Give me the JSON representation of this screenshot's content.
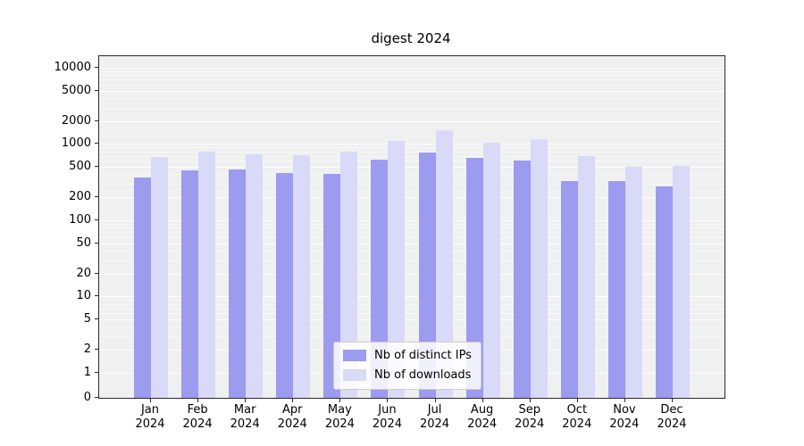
{
  "chart_data": {
    "type": "bar",
    "title": "digest 2024",
    "categories": [
      "Jan",
      "Feb",
      "Mar",
      "Apr",
      "May",
      "Jun",
      "Jul",
      "Aug",
      "Sep",
      "Oct",
      "Nov",
      "Dec"
    ],
    "year_label": "2024",
    "yscale": "log",
    "yticks": [
      0,
      1,
      2,
      5,
      10,
      20,
      50,
      100,
      200,
      500,
      1000,
      2000,
      5000,
      10000
    ],
    "ylim": [
      0,
      14000
    ],
    "grid": true,
    "legend_position": "lower center",
    "plot_background": "#f0f0f0",
    "series": [
      {
        "name": "Nb of distinct IPs",
        "color": "#9b9bef",
        "values": [
          360,
          450,
          460,
          420,
          410,
          620,
          780,
          660,
          600,
          330,
          330,
          280
        ]
      },
      {
        "name": "Nb of downloads",
        "color": "#d9d9f8",
        "values": [
          670,
          790,
          730,
          710,
          800,
          1100,
          1500,
          1050,
          1150,
          700,
          500,
          510
        ]
      }
    ]
  }
}
